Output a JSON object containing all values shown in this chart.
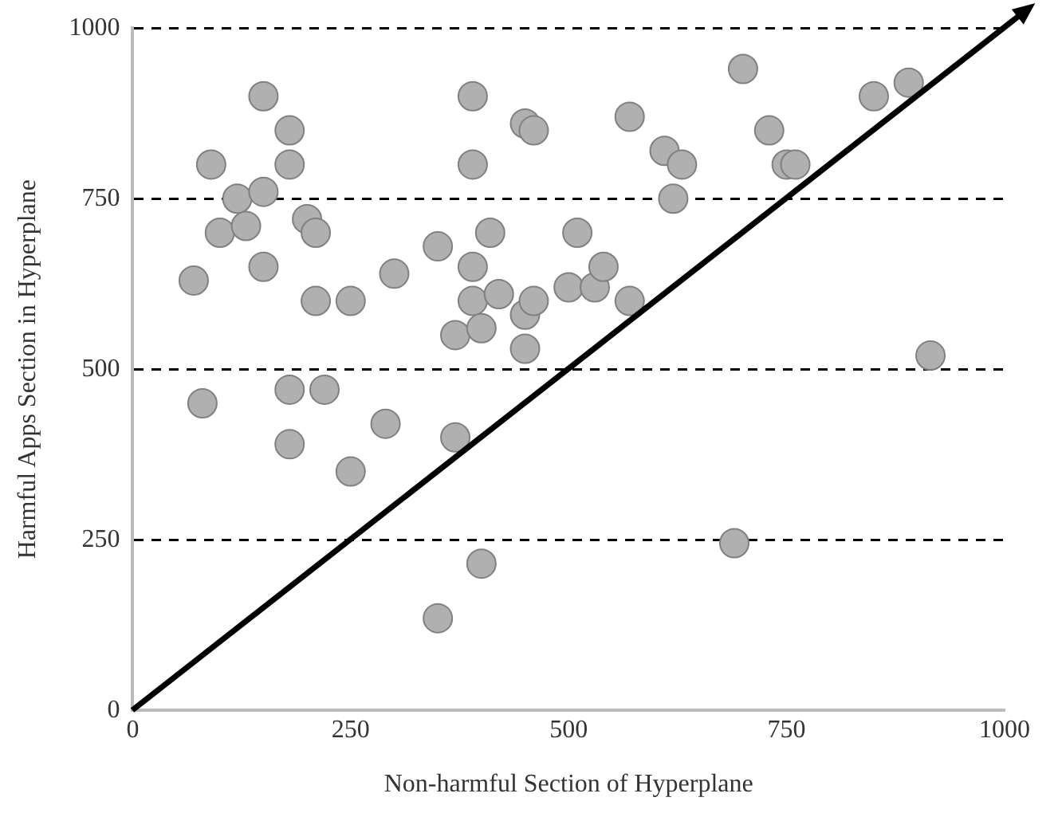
{
  "chart_data": {
    "type": "scatter",
    "xlabel": "Non-harmful Section of Hyperplane",
    "ylabel": "Harmful Apps Section in Hyperplane",
    "xlim": [
      0,
      1000
    ],
    "ylim": [
      0,
      1000
    ],
    "xticks": [
      0,
      250,
      500,
      750,
      1000
    ],
    "yticks": [
      0,
      250,
      500,
      750,
      1000
    ],
    "grid": "y",
    "legend": false,
    "series": [
      {
        "marker": "circle",
        "color": "#b0b0b0",
        "x": [
          70,
          80,
          90,
          100,
          120,
          130,
          150,
          150,
          150,
          180,
          180,
          180,
          180,
          200,
          210,
          210,
          220,
          250,
          250,
          290,
          300,
          350,
          350,
          370,
          370,
          390,
          390,
          390,
          390,
          400,
          400,
          410,
          420,
          450,
          460,
          450,
          450,
          460,
          500,
          510,
          530,
          540,
          570,
          570,
          610,
          620,
          630,
          690,
          700,
          730,
          750,
          760,
          850,
          890,
          915
        ],
        "values": [
          630,
          450,
          800,
          700,
          750,
          710,
          900,
          760,
          650,
          850,
          800,
          470,
          390,
          720,
          700,
          600,
          470,
          600,
          350,
          420,
          640,
          680,
          135,
          550,
          400,
          900,
          800,
          650,
          600,
          560,
          215,
          700,
          610,
          860,
          850,
          580,
          530,
          600,
          620,
          700,
          620,
          650,
          870,
          600,
          820,
          750,
          800,
          245,
          940,
          850,
          800,
          800,
          900,
          920,
          520
        ]
      }
    ]
  }
}
